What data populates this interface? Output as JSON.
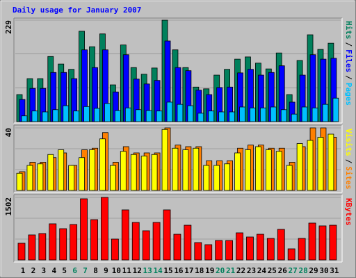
{
  "chart_data": [
    {
      "type": "bar",
      "title": "Daily usage for January 2007",
      "legend_separator": "/",
      "ylim": [
        0,
        229
      ],
      "yticks": [
        229
      ],
      "series": [
        {
          "name": "Hits",
          "color": "#00805c",
          "values": [
            61,
            97,
            97,
            147,
            130,
            118,
            204,
            169,
            198,
            83,
            173,
            122,
            107,
            121,
            229,
            162,
            122,
            78,
            74,
            105,
            118,
            141,
            146,
            132,
            119,
            155,
            61,
            138,
            196,
            163,
            177
          ]
        },
        {
          "name": "Files",
          "color": "#0000ff",
          "values": [
            50,
            75,
            75,
            111,
            111,
            97,
            162,
            122,
            162,
            67,
            151,
            96,
            85,
            93,
            182,
            122,
            115,
            71,
            61,
            77,
            78,
            110,
            118,
            105,
            111,
            126,
            44,
            105,
            151,
            141,
            143
          ]
        },
        {
          "name": "Pages",
          "color": "#00c0ff",
          "values": [
            13,
            24,
            22,
            27,
            36,
            24,
            34,
            30,
            41,
            25,
            31,
            27,
            25,
            24,
            44,
            39,
            36,
            19,
            24,
            22,
            22,
            33,
            31,
            31,
            33,
            27,
            17,
            33,
            31,
            39,
            53
          ]
        }
      ]
    },
    {
      "type": "bar",
      "legend_separator": "/",
      "ylim": [
        0,
        40
      ],
      "yticks": [
        40
      ],
      "series": [
        {
          "name": "Visits",
          "color": "#ffff00",
          "values": [
            11,
            16,
            17,
            23,
            26,
            16,
            21,
            26,
            33,
            16,
            25,
            23,
            22,
            23,
            39,
            27,
            26,
            27,
            16,
            16,
            17,
            24,
            26,
            28,
            26,
            25,
            16,
            30,
            32,
            34,
            36
          ]
        },
        {
          "name": "Sites",
          "color": "#ff8000",
          "values": [
            12,
            18,
            18,
            21,
            24,
            16,
            26,
            27,
            37,
            18,
            28,
            24,
            24,
            24,
            40,
            29,
            28,
            28,
            19,
            19,
            19,
            27,
            29,
            29,
            27,
            27,
            18,
            28,
            40,
            40,
            34
          ]
        }
      ]
    },
    {
      "type": "bar",
      "ylim": [
        0,
        1502
      ],
      "yticks": [
        1502
      ],
      "categories": [
        "1",
        "2",
        "3",
        "4",
        "5",
        "6",
        "7",
        "8",
        "9",
        "10",
        "11",
        "12",
        "13",
        "14",
        "15",
        "16",
        "17",
        "18",
        "19",
        "20",
        "21",
        "22",
        "23",
        "24",
        "25",
        "26",
        "27",
        "28",
        "29",
        "30",
        "31"
      ],
      "category_colors": [
        "#000000",
        "#000000",
        "#000000",
        "#000000",
        "#000000",
        "#00805c",
        "#00805c",
        "#000000",
        "#000000",
        "#000000",
        "#000000",
        "#000000",
        "#00805c",
        "#00805c",
        "#000000",
        "#000000",
        "#000000",
        "#000000",
        "#000000",
        "#00805c",
        "#00805c",
        "#000000",
        "#000000",
        "#000000",
        "#000000",
        "#000000",
        "#00805c",
        "#00805c",
        "#000000",
        "#000000",
        "#000000"
      ],
      "series": [
        {
          "name": "KBytes",
          "color": "#ff0000",
          "values": [
            401,
            601,
            634,
            868,
            751,
            851,
            1469,
            968,
            1502,
            501,
            1202,
            901,
            701,
            901,
            1202,
            617,
            834,
            417,
            367,
            467,
            467,
            651,
            551,
            617,
            517,
            734,
            267,
            517,
            885,
            818,
            834
          ]
        }
      ]
    }
  ]
}
